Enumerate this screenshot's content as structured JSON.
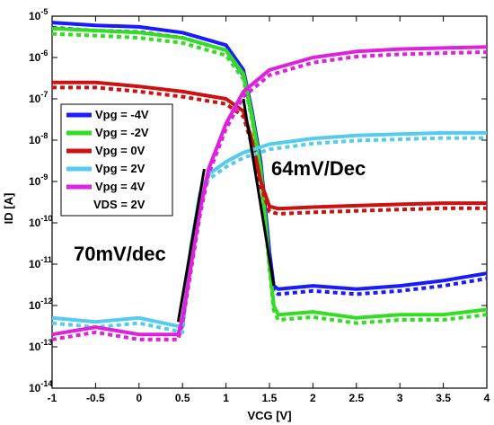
{
  "chart_data": {
    "type": "line",
    "xlabel": "VCG [V]",
    "ylabel": "ID [A]",
    "xlim": [
      -1,
      4
    ],
    "ylim_log10": [
      -14,
      -5
    ],
    "y_scale": "log",
    "x_ticks": [
      "-1",
      "-0.5",
      "0",
      "0.5",
      "1",
      "1.5",
      "2",
      "2.5",
      "3",
      "3.5",
      "4"
    ],
    "y_ticks": [
      {
        "base": "10",
        "exp": "-5"
      },
      {
        "base": "10",
        "exp": "-6"
      },
      {
        "base": "10",
        "exp": "-7"
      },
      {
        "base": "10",
        "exp": "-8"
      },
      {
        "base": "10",
        "exp": "-9"
      },
      {
        "base": "10",
        "exp": "-10"
      },
      {
        "base": "10",
        "exp": "-11"
      },
      {
        "base": "10",
        "exp": "-12"
      },
      {
        "base": "10",
        "exp": "-13"
      },
      {
        "base": "10",
        "exp": "-14"
      }
    ],
    "grid": false,
    "legend_position": "left",
    "legend_note": "VDS = 2V",
    "annotations": [
      {
        "text": "64mV/Dec"
      },
      {
        "text": "70mV/dec"
      }
    ],
    "series": [
      {
        "name": "Vpg = -4V",
        "color": "#1a1aff",
        "x": [
          -1,
          -0.5,
          0,
          0.5,
          1.0,
          1.2,
          1.3,
          1.4,
          1.5,
          1.55,
          1.6,
          2.0,
          2.5,
          3.0,
          3.5,
          4.0
        ],
        "id": [
          7e-06,
          6e-06,
          5.5e-06,
          4e-06,
          2e-06,
          5e-07,
          5e-08,
          3e-09,
          2e-11,
          3e-12,
          2.5e-12,
          3e-12,
          2.5e-12,
          3e-12,
          4e-12,
          6e-12
        ]
      },
      {
        "name": "Vpg = -2V",
        "color": "#33dd22",
        "x": [
          -1,
          -0.5,
          0,
          0.5,
          1.0,
          1.2,
          1.3,
          1.4,
          1.5,
          1.55,
          1.6,
          2.0,
          2.5,
          3.0,
          3.5,
          4.0
        ],
        "id": [
          5e-06,
          4.5e-06,
          4e-06,
          3e-06,
          1.5e-06,
          4e-07,
          4e-08,
          2e-09,
          1e-11,
          1e-12,
          6e-13,
          7e-13,
          5e-13,
          6e-13,
          6e-13,
          8e-13
        ]
      },
      {
        "name": "Vpg = 0V",
        "color": "#cc1111",
        "x": [
          -1,
          -0.5,
          0,
          0.5,
          1.0,
          1.2,
          1.3,
          1.4,
          1.5,
          1.6,
          2.0,
          2.5,
          3.0,
          3.5,
          4.0
        ],
        "id": [
          2.5e-07,
          2.5e-07,
          2e-07,
          1.5e-07,
          1e-07,
          5e-08,
          1e-08,
          1e-09,
          2.5e-10,
          2.2e-10,
          2.4e-10,
          2.6e-10,
          2.8e-10,
          3e-10,
          3e-10
        ]
      },
      {
        "name": "Vpg = 2V",
        "color": "#55ccee",
        "x": [
          -1,
          -0.5,
          0,
          0.5,
          0.6,
          0.7,
          0.8,
          1.0,
          1.2,
          1.5,
          2.0,
          2.5,
          3.0,
          3.5,
          4.0
        ],
        "id": [
          5e-13,
          4e-13,
          5e-13,
          3e-13,
          3e-11,
          5e-10,
          1.5e-09,
          3e-09,
          5e-09,
          8e-09,
          1.1e-08,
          1.3e-08,
          1.4e-08,
          1.5e-08,
          1.5e-08
        ]
      },
      {
        "name": "Vpg = 4V",
        "color": "#dd22dd",
        "x": [
          -1,
          -0.5,
          0,
          0.45,
          0.5,
          0.6,
          0.7,
          0.8,
          1.0,
          1.2,
          1.5,
          2.0,
          2.5,
          3.0,
          3.5,
          4.0
        ],
        "id": [
          2e-13,
          3e-13,
          2e-13,
          2e-13,
          5e-13,
          1e-11,
          2e-10,
          2e-09,
          2.5e-08,
          1.5e-07,
          5e-07,
          1e-06,
          1.4e-06,
          1.6e-06,
          1.7e-06,
          1.8e-06
        ]
      }
    ],
    "fit_lines": [
      {
        "x": [
          0.45,
          0.75
        ],
        "id": [
          4e-13,
          2e-09
        ]
      },
      {
        "x": [
          1.2,
          1.55
        ],
        "id": [
          1e-07,
          3e-12
        ]
      }
    ]
  }
}
